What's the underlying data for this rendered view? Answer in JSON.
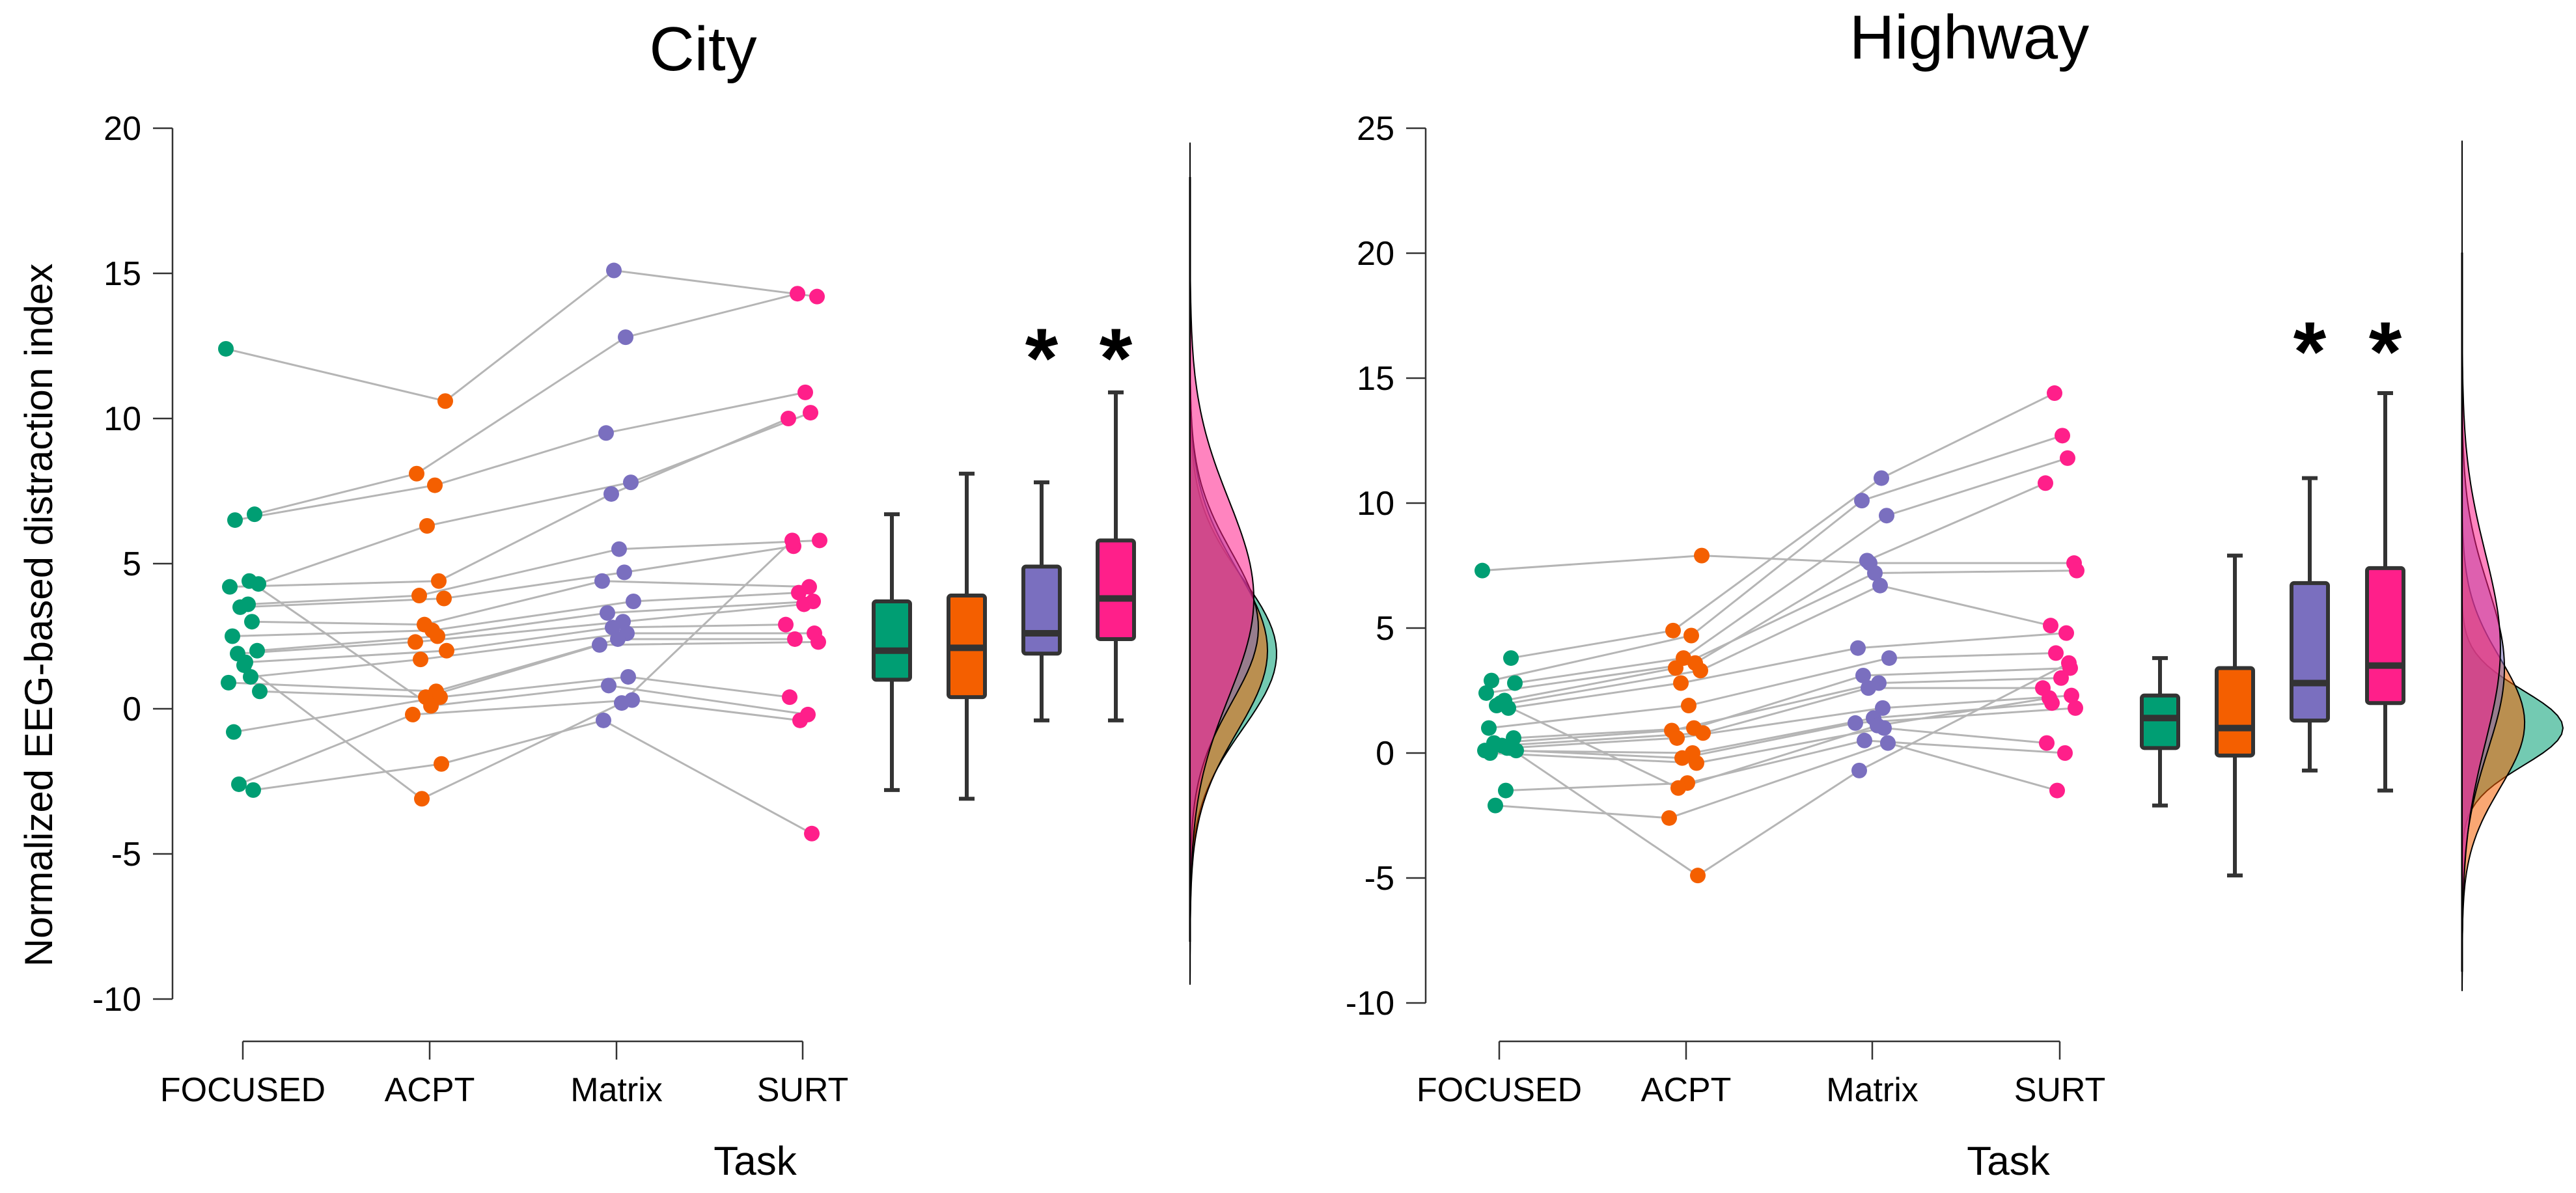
{
  "figure": {
    "ylabel": "Normalized EEG-based distraction index",
    "xlabel": "Task"
  },
  "colors": {
    "FOCUSED": "#009E73",
    "ACPT": "#F45F00",
    "Matrix": "#7A6FBF",
    "SURT": "#FF1F8A",
    "line": "#b5b5b5",
    "axis": "#333333"
  },
  "chart_data": [
    {
      "type": "raincloud",
      "title": "City",
      "xlabel": "Task",
      "ylabel": "Normalized EEG-based distraction index",
      "categories": [
        "FOCUSED",
        "ACPT",
        "Matrix",
        "SURT"
      ],
      "ylim": [
        -10,
        20
      ],
      "yticks": [
        -10,
        -5,
        0,
        5,
        10,
        15,
        20
      ],
      "ytick_labels": [
        "-10",
        "-5",
        "0",
        "5",
        "10",
        "15",
        "20"
      ],
      "significance": [
        "",
        "",
        "*",
        "*"
      ],
      "boxplots": [
        {
          "name": "FOCUSED",
          "min": -2.8,
          "q1": 1.0,
          "median": 2.0,
          "q3": 3.7,
          "max": 6.7
        },
        {
          "name": "ACPT",
          "min": -3.1,
          "q1": 0.4,
          "median": 2.1,
          "q3": 3.9,
          "max": 8.1
        },
        {
          "name": "Matrix",
          "min": -0.4,
          "q1": 1.9,
          "median": 2.6,
          "q3": 4.9,
          "max": 7.8
        },
        {
          "name": "SURT",
          "min": -0.4,
          "q1": 2.4,
          "median": 3.8,
          "q3": 5.8,
          "max": 10.9
        }
      ],
      "subjects": [
        [
          12.4,
          10.6,
          15.1,
          14.2
        ],
        [
          6.7,
          8.1,
          12.8,
          14.3
        ],
        [
          6.5,
          7.7,
          9.5,
          10.9
        ],
        [
          4.3,
          6.3,
          7.8,
          10.2
        ],
        [
          4.2,
          4.4,
          7.4,
          10.0
        ],
        [
          3.6,
          3.9,
          5.5,
          5.8
        ],
        [
          3.5,
          3.8,
          4.7,
          5.6
        ],
        [
          3.0,
          2.9,
          4.4,
          4.2
        ],
        [
          2.5,
          2.7,
          3.7,
          4.0
        ],
        [
          2.0,
          2.5,
          3.3,
          3.7
        ],
        [
          1.9,
          2.3,
          3.0,
          3.6
        ],
        [
          1.6,
          2.0,
          2.8,
          2.9
        ],
        [
          1.1,
          1.7,
          2.6,
          2.6
        ],
        [
          0.9,
          0.6,
          2.4,
          2.4
        ],
        [
          0.6,
          0.4,
          2.2,
          2.3
        ],
        [
          -0.8,
          0.4,
          1.1,
          0.4
        ],
        [
          4.4,
          0.1,
          0.8,
          -0.2
        ],
        [
          -2.6,
          -0.2,
          0.3,
          -0.4
        ],
        [
          -2.8,
          -1.9,
          -0.4,
          -4.3
        ],
        [
          1.5,
          -3.1,
          0.2,
          5.8
        ]
      ],
      "density": [
        {
          "name": "FOCUSED",
          "mean": 1.9,
          "sd": 2.6,
          "peak_rel": 0.95
        },
        {
          "name": "ACPT",
          "mean": 2.0,
          "sd": 2.8,
          "peak_rel": 0.85
        },
        {
          "name": "Matrix",
          "mean": 2.8,
          "sd": 2.6,
          "peak_rel": 0.75
        },
        {
          "name": "SURT",
          "mean": 3.8,
          "sd": 3.4,
          "peak_rel": 0.7
        }
      ]
    },
    {
      "type": "raincloud",
      "title": "Highway",
      "xlabel": "Task",
      "ylabel": "",
      "categories": [
        "FOCUSED",
        "ACPT",
        "Matrix",
        "SURT"
      ],
      "ylim": [
        -10,
        25
      ],
      "yticks": [
        -10,
        -5,
        0,
        5,
        10,
        15,
        20,
        25
      ],
      "ytick_labels": [
        "-10",
        "-5",
        "0",
        "5",
        "10",
        "15",
        "20",
        "25"
      ],
      "significance": [
        "",
        "",
        "*",
        "*"
      ],
      "boxplots": [
        {
          "name": "FOCUSED",
          "min": -2.1,
          "q1": 0.2,
          "median": 1.4,
          "q3": 2.3,
          "max": 3.8
        },
        {
          "name": "ACPT",
          "min": -4.9,
          "q1": -0.1,
          "median": 1.0,
          "q3": 3.4,
          "max": 7.9
        },
        {
          "name": "Matrix",
          "min": -0.7,
          "q1": 1.3,
          "median": 2.8,
          "q3": 6.8,
          "max": 11.0
        },
        {
          "name": "SURT",
          "min": -1.5,
          "q1": 2.0,
          "median": 3.5,
          "q3": 7.4,
          "max": 14.4
        }
      ],
      "subjects": [
        [
          7.3,
          7.9,
          7.6,
          7.6
        ],
        [
          3.8,
          4.9,
          11.0,
          14.4
        ],
        [
          2.9,
          4.7,
          10.1,
          12.7
        ],
        [
          2.8,
          3.8,
          9.5,
          11.8
        ],
        [
          2.4,
          3.6,
          7.7,
          10.8
        ],
        [
          2.1,
          3.4,
          7.2,
          7.3
        ],
        [
          1.9,
          3.3,
          6.7,
          5.1
        ],
        [
          1.8,
          2.8,
          4.2,
          4.8
        ],
        [
          1.0,
          1.9,
          3.8,
          4.0
        ],
        [
          0.6,
          1.0,
          3.1,
          3.4
        ],
        [
          0.4,
          0.9,
          2.8,
          3.0
        ],
        [
          0.3,
          0.8,
          2.6,
          2.6
        ],
        [
          0.2,
          0.6,
          1.8,
          2.3
        ],
        [
          0.1,
          0.0,
          1.4,
          2.0
        ],
        [
          0.1,
          -0.2,
          1.2,
          1.8
        ],
        [
          0.0,
          -0.4,
          1.0,
          0.4
        ],
        [
          -1.5,
          -1.2,
          0.5,
          0.0
        ],
        [
          -2.1,
          -2.6,
          0.4,
          -1.5
        ],
        [
          0.2,
          -4.9,
          -0.7,
          3.6
        ],
        [
          2.0,
          -1.4,
          1.1,
          2.2
        ]
      ],
      "density": [
        {
          "name": "FOCUSED",
          "mean": 1.0,
          "sd": 1.5,
          "peak_rel": 1.0
        },
        {
          "name": "ACPT",
          "mean": 1.2,
          "sd": 2.6,
          "peak_rel": 0.62
        },
        {
          "name": "Matrix",
          "mean": 3.4,
          "sd": 3.3,
          "peak_rel": 0.42
        },
        {
          "name": "SURT",
          "mean": 4.2,
          "sd": 3.8,
          "peak_rel": 0.38
        }
      ]
    }
  ]
}
